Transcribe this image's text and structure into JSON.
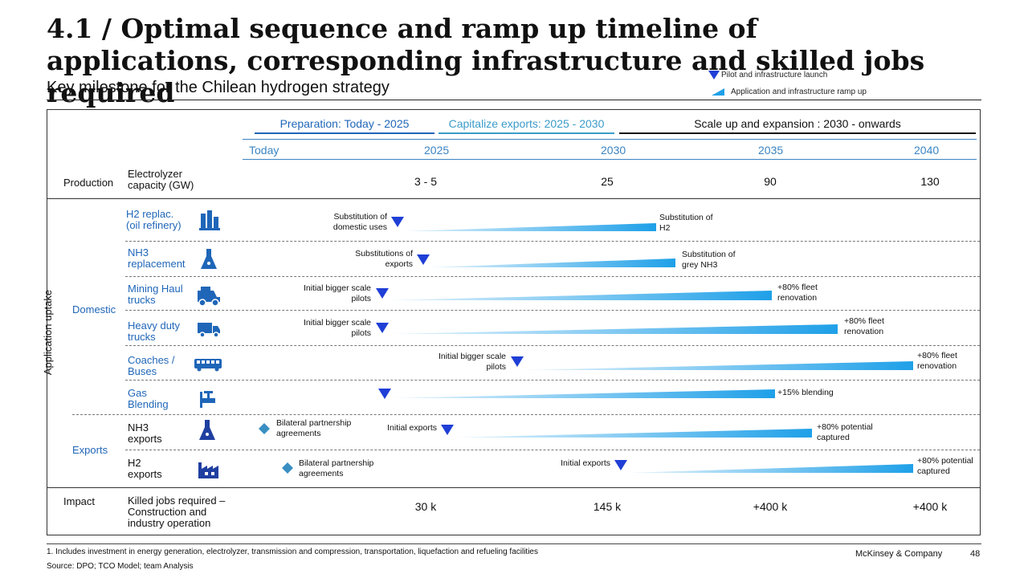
{
  "title": "4.1 / Optimal sequence and ramp up timeline of applications, corresponding infrastructure and skilled jobs required",
  "subtitle": "Key milestone for the Chilean hydrogen strategy",
  "legend": {
    "pilot": "Pilot and infrastructure launch",
    "ramp": "Application and infrastructure ramp up"
  },
  "phases": [
    {
      "label": "Preparation: Today - 2025",
      "color": "#1f66b8"
    },
    {
      "label": "Capitalize exports: 2025 - 2030",
      "color": "#3a9bc9"
    },
    {
      "label": "Scale up and expansion : 2030 - onwards",
      "color": "#111111"
    }
  ],
  "years": [
    "Today",
    "2025",
    "2030",
    "2035",
    "2040"
  ],
  "production": {
    "section": "Production",
    "label": "Electrolyzer capacity (GW)",
    "values": [
      "3 - 5",
      "25",
      "90",
      "130"
    ]
  },
  "application": {
    "section": "Application uptake",
    "domestic": "Domestic",
    "exports": "Exports"
  },
  "rows": [
    {
      "label": "H2 replac. (oil refinery)",
      "icon": "refinery-icon",
      "start_text": "Substitution of domestic uses",
      "end_text": "Substitution of H2"
    },
    {
      "label": "NH3 replacement",
      "icon": "flask-icon",
      "start_text": "Substitutions of exports",
      "end_text": "Substitution of grey NH3"
    },
    {
      "label": "Mining Haul trucks",
      "icon": "haul-truck-icon",
      "start_text": "Initial bigger scale pilots",
      "end_text": "+80% fleet renovation"
    },
    {
      "label": "Heavy duty trucks",
      "icon": "truck-icon",
      "start_text": "Initial bigger scale pilots",
      "end_text": "+80% fleet renovation"
    },
    {
      "label": "Coaches / Buses",
      "icon": "bus-icon",
      "start_text": "Initial bigger scale pilots",
      "end_text": "+80% fleet renovation"
    },
    {
      "label": "Gas Blending",
      "icon": "valve-icon",
      "start_text": "",
      "end_text": "+15% blending"
    },
    {
      "label": "NH3 exports",
      "icon": "flask-icon",
      "diamond_text": "Bilateral partnership agreements",
      "start_text": "Initial exports",
      "end_text": "+80% potential captured"
    },
    {
      "label": "H2 exports",
      "icon": "factory-icon",
      "diamond_text": "Bilateral partnership agreements",
      "start_text": "Initial exports",
      "end_text": "+80% potential captured"
    }
  ],
  "impact": {
    "section": "Impact",
    "label": "Killed jobs required – Construction and industry operation",
    "values": [
      "30 k",
      "145 k",
      "+400 k",
      "+400 k"
    ]
  },
  "footnote": "1. Includes investment in energy generation, electrolyzer, transmission and compression, transportation, liquefaction and refueling facilities",
  "source": "Source: DPO; TCO Model; team Analysis",
  "brand": "McKinsey & Company",
  "page_number": "48",
  "colors": {
    "triangle": "#1f3fd6",
    "diamond": "#3a8fc2",
    "ramp_start": "#e6f4fc",
    "ramp_end": "#1fa0e8",
    "label_blue": "#1f66b8"
  }
}
